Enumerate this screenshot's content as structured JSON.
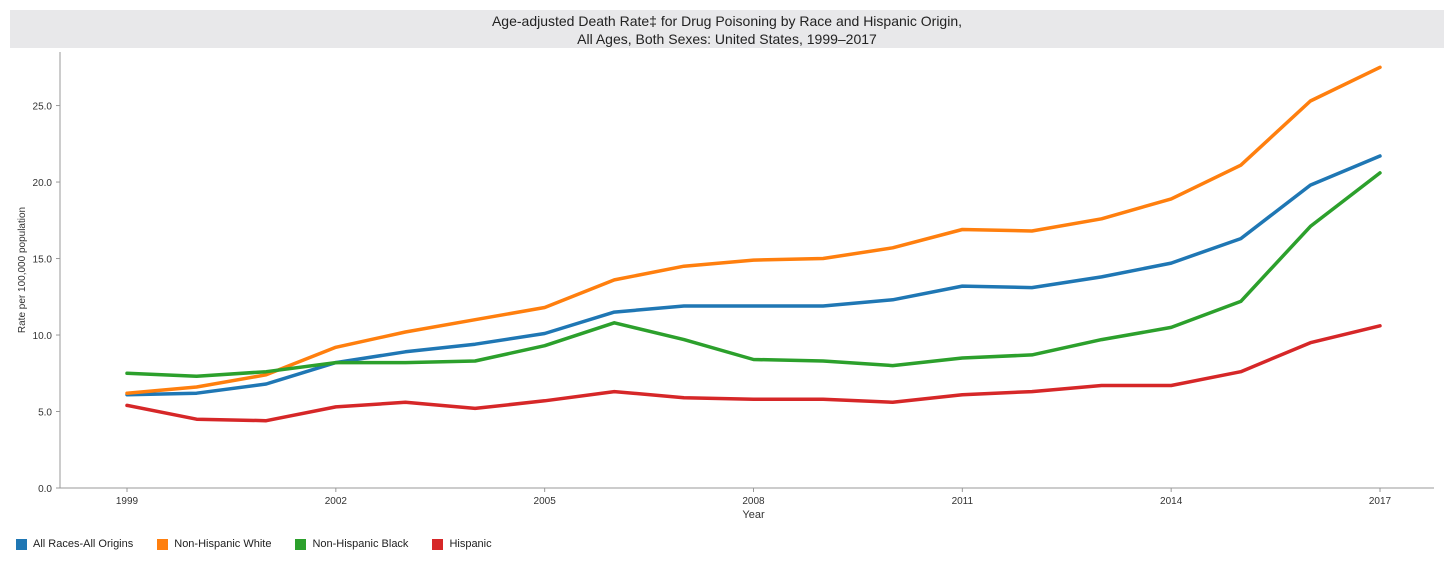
{
  "chart_data": {
    "type": "line",
    "title": "Age-adjusted Death Rate‡ for Drug Poisoning by Race and Hispanic Origin,",
    "subtitle": "All Ages, Both Sexes: United States, 1999–2017",
    "xlabel": "Year",
    "ylabel": "Rate per 100,000 population",
    "x": [
      1999,
      2000,
      2001,
      2002,
      2003,
      2004,
      2005,
      2006,
      2007,
      2008,
      2009,
      2010,
      2011,
      2012,
      2013,
      2014,
      2015,
      2016,
      2017
    ],
    "x_ticks": [
      "1999",
      "2002",
      "2005",
      "2008",
      "2011",
      "2014",
      "2017"
    ],
    "y_ticks": [
      "0.0",
      "5.0",
      "10.0",
      "15.0",
      "20.0",
      "25.0"
    ],
    "ylim": [
      0,
      28.5
    ],
    "xlim": [
      1998.1,
      1999.9
    ],
    "grid": false,
    "legend_position": "bottom-left",
    "series": [
      {
        "name": "All Races-All Origins",
        "color": "#1f77b4",
        "values": [
          6.1,
          6.2,
          6.8,
          8.2,
          8.9,
          9.4,
          10.1,
          11.5,
          11.9,
          11.9,
          11.9,
          12.3,
          13.2,
          13.1,
          13.8,
          14.7,
          16.3,
          19.8,
          21.7
        ]
      },
      {
        "name": "Non-Hispanic White",
        "color": "#ff7f0e",
        "values": [
          6.2,
          6.6,
          7.4,
          9.2,
          10.2,
          11.0,
          11.8,
          13.6,
          14.5,
          14.9,
          15.0,
          15.7,
          16.9,
          16.8,
          17.6,
          18.9,
          21.1,
          25.3,
          27.5
        ]
      },
      {
        "name": "Non-Hispanic Black",
        "color": "#2ca02c",
        "values": [
          7.5,
          7.3,
          7.6,
          8.2,
          8.2,
          8.3,
          9.3,
          10.8,
          9.7,
          8.4,
          8.3,
          8.0,
          8.5,
          8.7,
          9.7,
          10.5,
          12.2,
          17.1,
          20.6
        ]
      },
      {
        "name": "Hispanic",
        "color": "#d62728",
        "values": [
          5.4,
          4.5,
          4.4,
          5.3,
          5.6,
          5.2,
          5.7,
          6.3,
          5.9,
          5.8,
          5.8,
          5.6,
          6.1,
          6.3,
          6.7,
          6.7,
          7.6,
          9.5,
          10.6
        ]
      }
    ]
  }
}
